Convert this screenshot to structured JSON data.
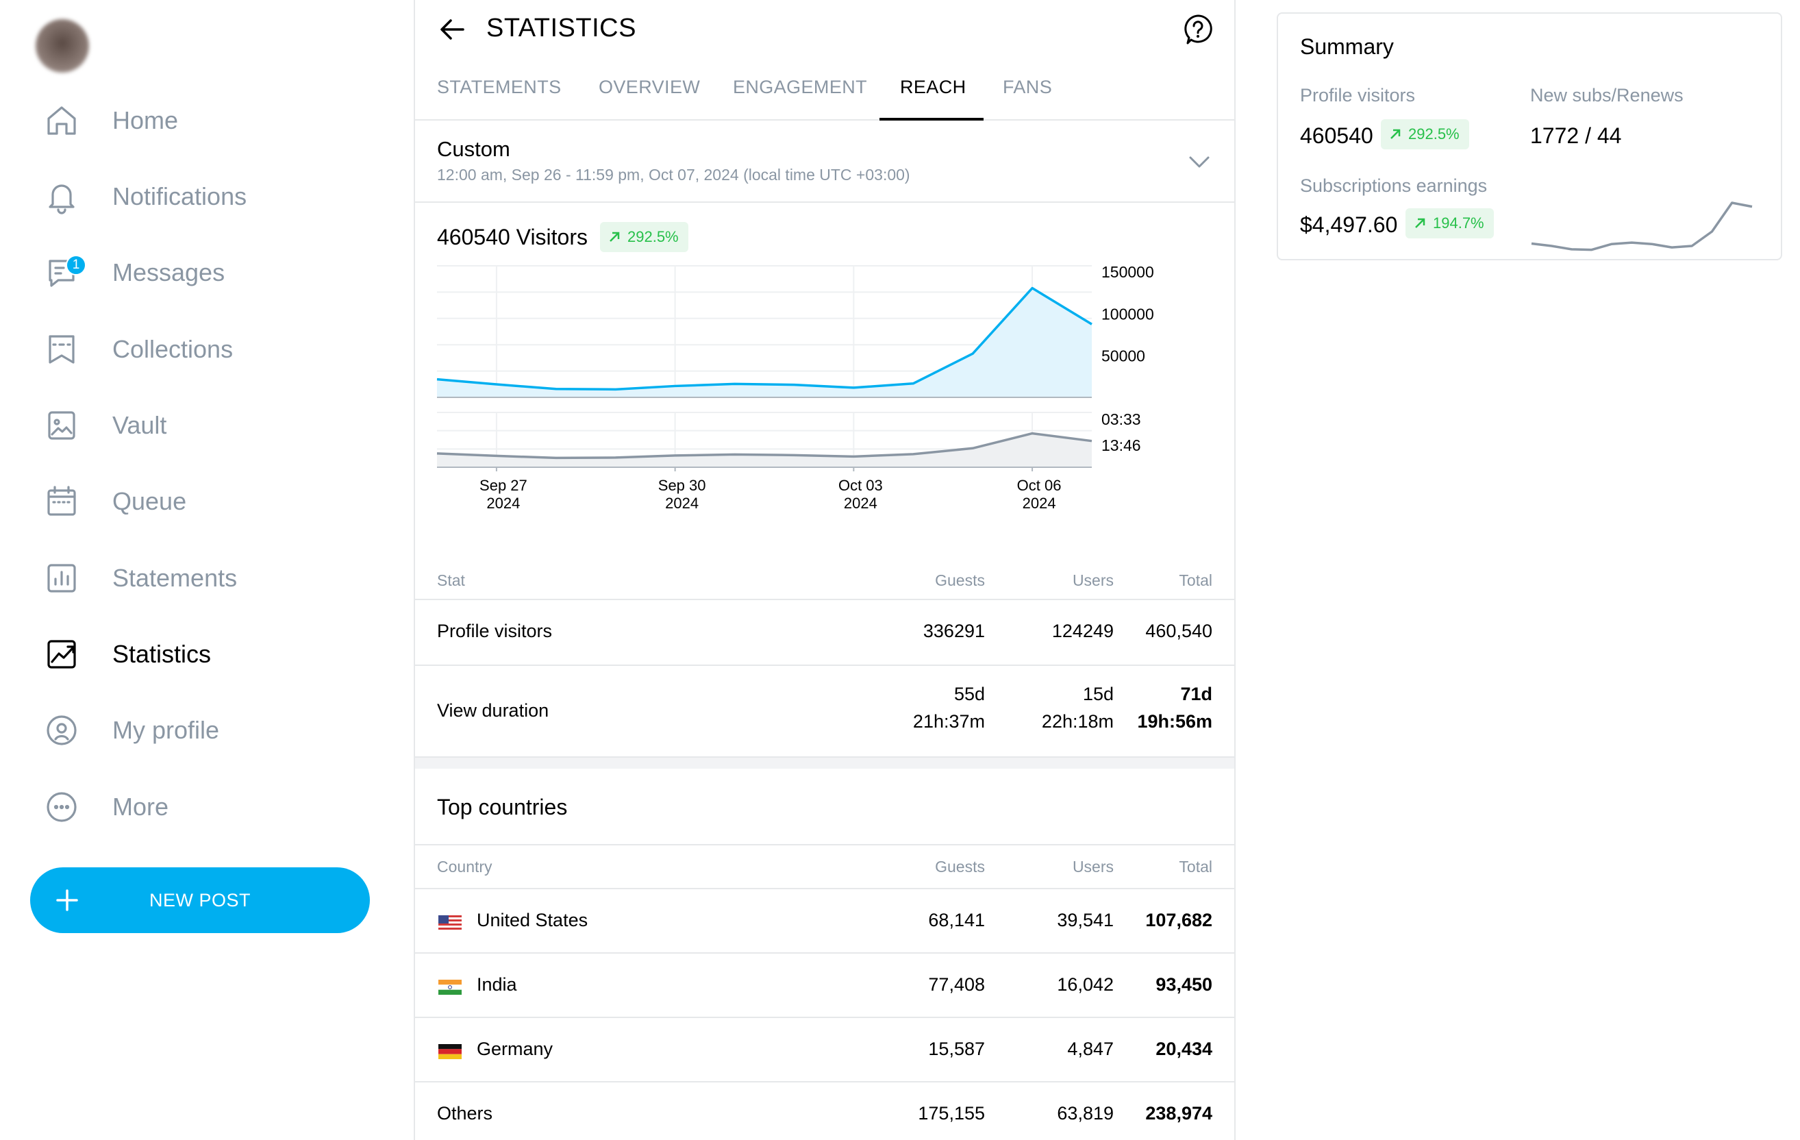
{
  "sidebar": {
    "items": [
      {
        "label": "Home",
        "icon": "home-icon"
      },
      {
        "label": "Notifications",
        "icon": "bell-icon"
      },
      {
        "label": "Messages",
        "icon": "message-icon",
        "badge": "1"
      },
      {
        "label": "Collections",
        "icon": "bookmark-stars-icon"
      },
      {
        "label": "Vault",
        "icon": "image-icon"
      },
      {
        "label": "Queue",
        "icon": "calendar-icon"
      },
      {
        "label": "Statements",
        "icon": "bar-chart-icon"
      },
      {
        "label": "Statistics",
        "icon": "trend-chart-icon",
        "active": true
      },
      {
        "label": "My profile",
        "icon": "user-circle-icon"
      },
      {
        "label": "More",
        "icon": "more-circle-icon"
      }
    ],
    "new_post_label": "NEW POST"
  },
  "header": {
    "title": "STATISTICS"
  },
  "tabs": [
    {
      "label": "STATEMENTS"
    },
    {
      "label": "OVERVIEW"
    },
    {
      "label": "ENGAGEMENT"
    },
    {
      "label": "REACH",
      "active": true
    },
    {
      "label": "FANS"
    }
  ],
  "date_range": {
    "title": "Custom",
    "subtitle": "12:00 am, Sep 26 - 11:59 pm, Oct 07, 2024 (local time UTC +03:00)"
  },
  "visitors": {
    "title": "460540 Visitors",
    "change": "292.5%"
  },
  "chart_data": {
    "type": "area",
    "x": [
      "Sep 26",
      "Sep 27",
      "Sep 28",
      "Sep 29",
      "Sep 30",
      "Oct 01",
      "Oct 02",
      "Oct 03",
      "Oct 04",
      "Oct 05",
      "Oct 06",
      "Oct 07"
    ],
    "x_tick_labels": [
      {
        "month_day": "Sep 27",
        "year": "2024"
      },
      {
        "month_day": "Sep 30",
        "year": "2024"
      },
      {
        "month_day": "Oct 03",
        "year": "2024"
      },
      {
        "month_day": "Oct 06",
        "year": "2024"
      }
    ],
    "series": [
      {
        "values": [
          21500,
          15500,
          10000,
          9500,
          13500,
          16000,
          15000,
          11500,
          16500,
          52000,
          130000,
          87000
        ],
        "color": "#00aff0"
      },
      {
        "values": [
          0.4,
          0.33,
          0.27,
          0.28,
          0.34,
          0.37,
          0.35,
          0.31,
          0.38,
          0.55,
          0.98,
          0.76
        ],
        "color": "#8a96a3"
      }
    ],
    "y_ticks_top": [
      "150000",
      "100000",
      "50000"
    ],
    "ylim_top": [
      0,
      150000
    ],
    "y_ticks_bottom": [
      "03:33",
      "13:46"
    ],
    "grid": true
  },
  "stats_table": {
    "headers": [
      "Stat",
      "Guests",
      "Users",
      "Total"
    ],
    "rows": [
      {
        "stat": "Profile visitors",
        "guests": "336291",
        "users": "124249",
        "total": "460,540"
      },
      {
        "stat": "View duration",
        "guests_1": "55d",
        "guests_2": "21h:37m",
        "users_1": "15d",
        "users_2": "22h:18m",
        "total_1": "71d",
        "total_2": "19h:56m"
      }
    ]
  },
  "top_countries": {
    "title": "Top countries",
    "headers": [
      "Country",
      "Guests",
      "Users",
      "Total"
    ],
    "rows": [
      {
        "country": "United States",
        "flag": "us-flag-icon",
        "guests": "68,141",
        "users": "39,541",
        "total": "107,682"
      },
      {
        "country": "India",
        "flag": "india-flag-icon",
        "guests": "77,408",
        "users": "16,042",
        "total": "93,450"
      },
      {
        "country": "Germany",
        "flag": "germany-flag-icon",
        "guests": "15,587",
        "users": "4,847",
        "total": "20,434"
      },
      {
        "country": "Others",
        "flag": "",
        "guests": "175,155",
        "users": "63,819",
        "total": "238,974"
      }
    ]
  },
  "summary": {
    "title": "Summary",
    "profile_visitors_label": "Profile visitors",
    "profile_visitors_value": "460540",
    "profile_visitors_change": "292.5%",
    "subs_label": "New subs/Renews",
    "subs_value": "1772 / 44",
    "earnings_label": "Subscriptions earnings",
    "earnings_value": "$4,497.60",
    "earnings_change": "194.7%",
    "sparkline": [
      0.15,
      0.1,
      0.03,
      0.02,
      0.14,
      0.17,
      0.14,
      0.07,
      0.1,
      0.4,
      1.0,
      0.92
    ]
  },
  "colors": {
    "accent": "#00aff0",
    "positive": "#27c04a",
    "muted": "#8a96a3",
    "border": "#e6e8ea"
  }
}
